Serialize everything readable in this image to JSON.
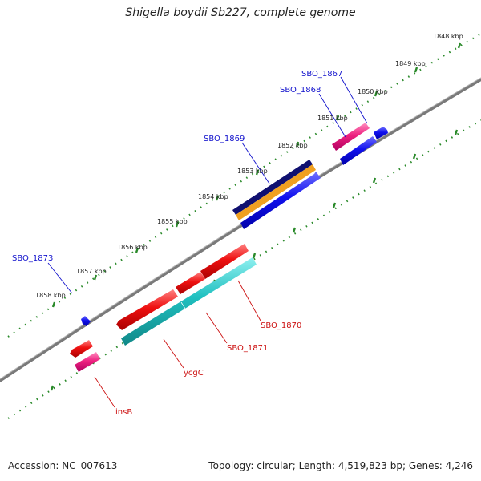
{
  "title": "Shigella boydii Sb227, complete genome",
  "footer": {
    "accession_label": "Accession:",
    "accession": "NC_007613",
    "topology_label": "Topology:",
    "topology": "circular;",
    "length_label": "Length:",
    "length": "4,519,823 bp;",
    "genes_label": "Genes:",
    "genes": "4,246"
  },
  "colors": {
    "backbone": "#7a7a7a",
    "tick": "#2a8a2a",
    "forward_label": "#1010cc",
    "reverse_label": "#cc1010",
    "blue_gene": "#1010ee",
    "navy_gene": "#101070",
    "orange_gene": "#f0a020",
    "red_gene": "#ee1010",
    "magenta_gene": "#ee2080",
    "cyan_gene": "#20c0c0"
  },
  "scale": {
    "ticks": [
      {
        "kbp": 1848,
        "label": "1848 kbp"
      },
      {
        "kbp": 1849,
        "label": "1849 kbp"
      },
      {
        "kbp": 1850,
        "label": "1850 kbp"
      },
      {
        "kbp": 1851,
        "label": "1851 kbp"
      },
      {
        "kbp": 1852,
        "label": "1852 kbp"
      },
      {
        "kbp": 1853,
        "label": "1853 kbp"
      },
      {
        "kbp": 1854,
        "label": "1854 kbp"
      },
      {
        "kbp": 1855,
        "label": "1855 kbp"
      },
      {
        "kbp": 1856,
        "label": "1856 kbp"
      },
      {
        "kbp": 1857,
        "label": "1857 kbp"
      },
      {
        "kbp": 1858,
        "label": "1858 kbp"
      }
    ]
  },
  "genes": [
    {
      "name": "SBO_1867",
      "strand": "forward",
      "color": "blue_gene",
      "labeled": true
    },
    {
      "name": "SBO_1868",
      "strand": "forward",
      "color": "blue_gene",
      "labeled": true
    },
    {
      "name": "SBO_1869",
      "strand": "forward",
      "color": "blue_gene",
      "labeled": true
    },
    {
      "name": "SBO_1873",
      "strand": "forward",
      "color": "blue_gene",
      "labeled": true
    },
    {
      "name": "SBO_1870",
      "strand": "reverse",
      "color": "red_gene",
      "labeled": true
    },
    {
      "name": "SBO_1871",
      "strand": "reverse",
      "color": "red_gene",
      "labeled": true
    },
    {
      "name": "ycgC",
      "strand": "reverse",
      "color": "red_gene",
      "labeled": true
    },
    {
      "name": "insB",
      "strand": "reverse",
      "color": "red_gene",
      "labeled": true
    }
  ]
}
